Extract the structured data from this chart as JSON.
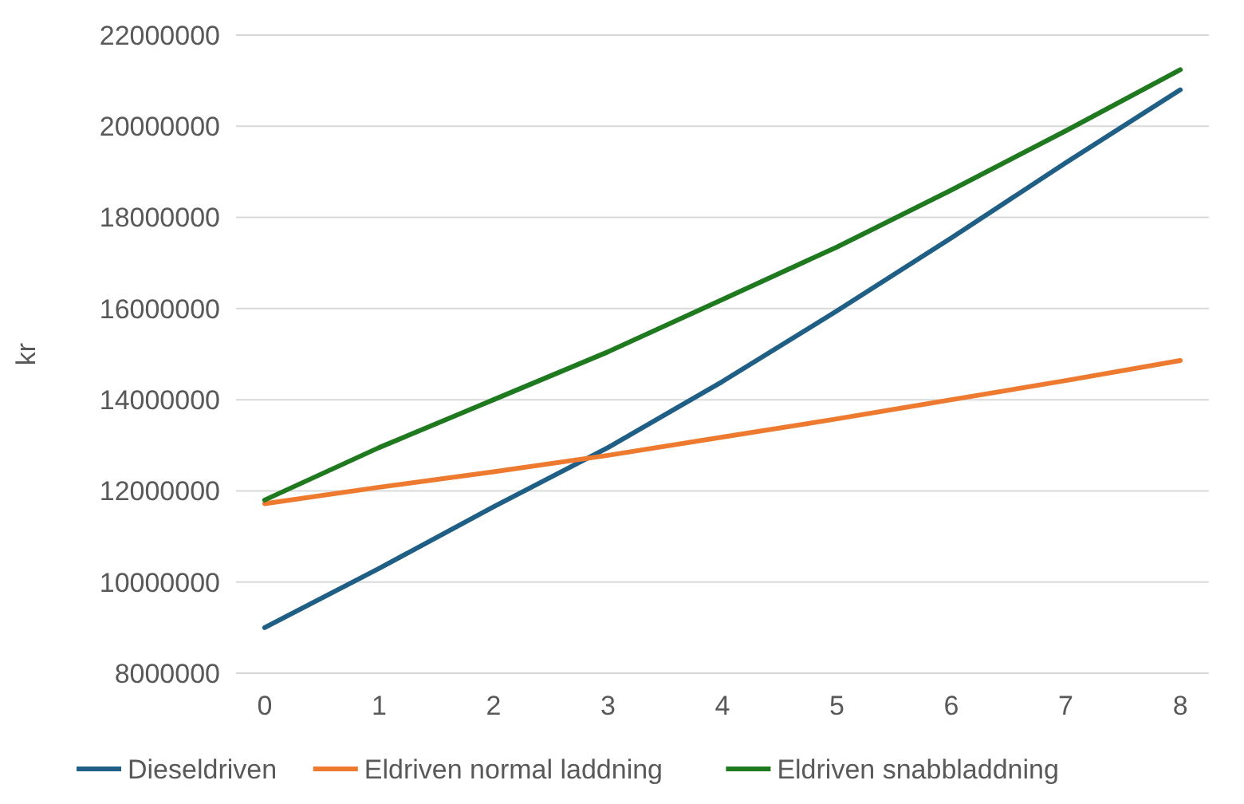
{
  "chart_data": {
    "type": "line",
    "ylabel": "kr",
    "x": [
      0,
      1,
      2,
      3,
      4,
      5,
      6,
      7,
      8
    ],
    "xlim": [
      -0.25,
      8.25
    ],
    "xticks": [
      0,
      1,
      2,
      3,
      4,
      5,
      6,
      7,
      8
    ],
    "ylim": [
      8000000,
      22000000
    ],
    "yticks": [
      8000000,
      10000000,
      12000000,
      14000000,
      16000000,
      18000000,
      20000000,
      22000000
    ],
    "grid": "y",
    "legend": "bottom",
    "marker": "none",
    "line_style": "solid",
    "series": [
      {
        "name": "Dieseldriven",
        "color": "#1f5f86",
        "values": [
          9000000,
          10300000,
          11650000,
          12950000,
          14400000,
          15950000,
          17550000,
          19200000,
          20800000
        ]
      },
      {
        "name": "Eldriven normal laddning",
        "color": "#ee7a30",
        "values": [
          11720000,
          12080000,
          12420000,
          12780000,
          13180000,
          13580000,
          14000000,
          14420000,
          14860000
        ]
      },
      {
        "name": "Eldriven snabbladdning",
        "color": "#1f7a1f",
        "values": [
          11800000,
          12950000,
          14000000,
          15050000,
          16200000,
          17350000,
          18600000,
          19900000,
          21240000
        ]
      }
    ]
  }
}
